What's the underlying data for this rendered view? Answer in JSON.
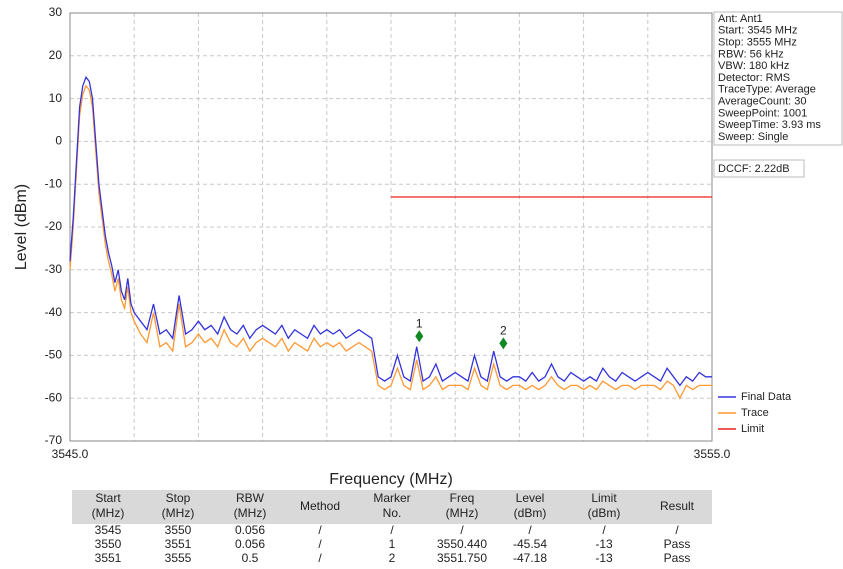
{
  "chart_data": {
    "type": "line",
    "xlabel": "Frequency (MHz)",
    "ylabel": "Level (dBm)",
    "xlim": [
      3545,
      3555
    ],
    "ylim": [
      -70,
      30
    ],
    "xticks": [
      {
        "value": 3545,
        "label": "3545.0"
      },
      {
        "value": 3546,
        "label": null
      },
      {
        "value": 3547,
        "label": null
      },
      {
        "value": 3548,
        "label": null
      },
      {
        "value": 3549,
        "label": null
      },
      {
        "value": 3550,
        "label": null
      },
      {
        "value": 3551,
        "label": null
      },
      {
        "value": 3552,
        "label": null
      },
      {
        "value": 3553,
        "label": null
      },
      {
        "value": 3554,
        "label": null
      },
      {
        "value": 3555,
        "label": "3555.0"
      }
    ],
    "yticks": [
      30,
      20,
      10,
      0,
      -10,
      -20,
      -30,
      -40,
      -50,
      -60,
      -70
    ],
    "grid": true,
    "legend": "lower right",
    "x": [
      3545,
      3545.05,
      3545.1,
      3545.15,
      3545.2,
      3545.25,
      3545.3,
      3545.35,
      3545.4,
      3545.45,
      3545.5,
      3545.55,
      3545.6,
      3545.65,
      3545.7,
      3545.75,
      3545.8,
      3545.85,
      3545.9,
      3545.95,
      3546,
      3546.1,
      3546.2,
      3546.3,
      3546.4,
      3546.5,
      3546.6,
      3546.7,
      3546.8,
      3546.9,
      3547,
      3547.1,
      3547.2,
      3547.3,
      3547.4,
      3547.5,
      3547.6,
      3547.7,
      3547.8,
      3547.9,
      3548,
      3548.1,
      3548.2,
      3548.3,
      3548.4,
      3548.5,
      3548.6,
      3548.7,
      3548.8,
      3548.9,
      3549,
      3549.1,
      3549.2,
      3549.3,
      3549.4,
      3549.5,
      3549.6,
      3549.7,
      3549.8,
      3549.9,
      3550,
      3550.1,
      3550.2,
      3550.3,
      3550.4,
      3550.5,
      3550.6,
      3550.7,
      3550.8,
      3550.9,
      3551,
      3551.1,
      3551.2,
      3551.3,
      3551.4,
      3551.5,
      3551.6,
      3551.7,
      3551.8,
      3551.9,
      3552,
      3552.1,
      3552.2,
      3552.3,
      3552.4,
      3552.5,
      3552.6,
      3552.7,
      3552.8,
      3552.9,
      3553,
      3553.1,
      3553.2,
      3553.3,
      3553.4,
      3553.5,
      3553.6,
      3553.7,
      3553.8,
      3553.9,
      3554,
      3554.1,
      3554.2,
      3554.3,
      3554.4,
      3554.5,
      3554.6,
      3554.7,
      3554.8,
      3554.9,
      3555
    ],
    "series": [
      {
        "name": "Final Data",
        "color": "#3333dd",
        "values": [
          -28,
          -18,
          -5,
          8,
          13,
          15,
          14,
          10,
          0,
          -10,
          -16,
          -22,
          -26,
          -29,
          -33,
          -30,
          -35,
          -37,
          -32,
          -38,
          -40,
          -42,
          -44,
          -38,
          -45,
          -44,
          -46,
          -36,
          -45,
          -44,
          -42,
          -44,
          -43,
          -45,
          -41,
          -44,
          -45,
          -43,
          -46,
          -44,
          -43,
          -44,
          -45,
          -43,
          -46,
          -44,
          -45,
          -46,
          -43,
          -45,
          -44,
          -45,
          -44,
          -46,
          -45,
          -44,
          -45,
          -46,
          -55,
          -56,
          -55,
          -50,
          -55,
          -56,
          -48,
          -56,
          -55,
          -52,
          -56,
          -55,
          -54,
          -55,
          -56,
          -50,
          -55,
          -56,
          -49,
          -55,
          -56,
          -55,
          -55,
          -56,
          -54,
          -56,
          -55,
          -52,
          -55,
          -56,
          -54,
          -55,
          -56,
          -55,
          -56,
          -53,
          -55,
          -56,
          -54,
          -55,
          -56,
          -55,
          -54,
          -55,
          -56,
          -53,
          -55,
          -57,
          -55,
          -56,
          -54,
          -55,
          -55
        ]
      },
      {
        "name": "Trace",
        "color": "#ff9933",
        "values": [
          -30,
          -20,
          -7,
          6,
          11,
          13,
          12,
          8,
          -2,
          -12,
          -18,
          -24,
          -28,
          -31,
          -35,
          -32,
          -37,
          -39,
          -34,
          -40,
          -42,
          -45,
          -47,
          -40,
          -48,
          -47,
          -49,
          -38,
          -48,
          -47,
          -45,
          -47,
          -46,
          -48,
          -44,
          -47,
          -48,
          -46,
          -49,
          -47,
          -46,
          -47,
          -48,
          -46,
          -49,
          -47,
          -48,
          -49,
          -46,
          -48,
          -47,
          -48,
          -47,
          -49,
          -48,
          -47,
          -48,
          -49,
          -57,
          -58,
          -57,
          -53,
          -57,
          -58,
          -51,
          -58,
          -57,
          -55,
          -58,
          -57,
          -57,
          -57,
          -58,
          -53,
          -57,
          -58,
          -52,
          -57,
          -58,
          -57,
          -57,
          -58,
          -57,
          -58,
          -57,
          -55,
          -57,
          -58,
          -57,
          -57,
          -58,
          -57,
          -58,
          -56,
          -57,
          -58,
          -57,
          -57,
          -58,
          -57,
          -57,
          -57,
          -58,
          -56,
          -57,
          -60,
          -57,
          -58,
          -57,
          -57,
          -57
        ]
      },
      {
        "name": "Limit",
        "color": "#ee2222",
        "x": [
          3550,
          3555
        ],
        "values": [
          -13,
          -13
        ]
      }
    ],
    "markers": [
      {
        "label": "1",
        "x": 3550.44,
        "y": -45.54,
        "color": "#118822"
      },
      {
        "label": "2",
        "x": 3551.75,
        "y": -47.18,
        "color": "#118822"
      }
    ]
  },
  "info": {
    "lines": [
      "Ant: Ant1",
      "Start: 3545 MHz",
      "Stop: 3555 MHz",
      "RBW: 56 kHz",
      "VBW: 180 kHz",
      "Detector: RMS",
      "TraceType: Average",
      "AverageCount: 30",
      "SweepPoint: 1001",
      "SweepTime: 3.93 ms",
      "Sweep: Single"
    ],
    "dccf": "DCCF: 2.22dB"
  },
  "table": {
    "headers": [
      [
        "Start",
        "(MHz)"
      ],
      [
        "Stop",
        "(MHz)"
      ],
      [
        "RBW",
        "(MHz)"
      ],
      [
        "Method"
      ],
      [
        "Marker",
        "No."
      ],
      [
        "Freq",
        "(MHz)"
      ],
      [
        "Level",
        "(dBm)"
      ],
      [
        "Limit",
        "(dBm)"
      ],
      [
        "Result"
      ]
    ],
    "rows": [
      [
        "3545",
        "3550",
        "0.056",
        "/",
        "/",
        "/",
        "/",
        "/",
        "/"
      ],
      [
        "3550",
        "3551",
        "0.056",
        "/",
        "1",
        "3550.440",
        "-45.54",
        "-13",
        "Pass"
      ],
      [
        "3551",
        "3555",
        "0.5",
        "/",
        "2",
        "3551.750",
        "-47.18",
        "-13",
        "Pass"
      ]
    ]
  }
}
